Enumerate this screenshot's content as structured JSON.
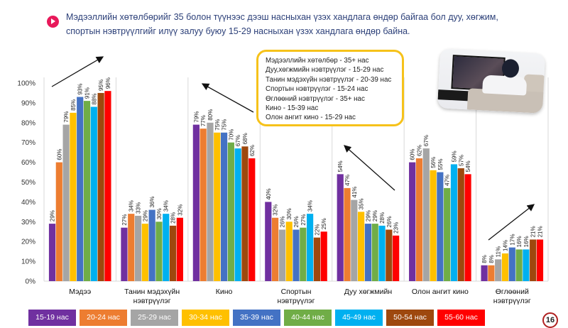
{
  "header": {
    "text_line1": "Мэдээллийн хөтөлбөрийг 35 болон түүнээс дээш насныхан үзэх хандлага өндөр байгаа бол  дуу, хөгжим,",
    "text_line2": "спортын нэвтрүүлгийг илүү залуу буюу 15-29 насныхан үзэх хандлага өндөр байна."
  },
  "annotation_box": [
    "Мэдээллийн хөтөлбөр  -  35+ нас",
    "Дуу,хөгжмийн нэвтрүүлэг   - 15-29 нас",
    "Танин мэдэхүйн нэвтрүүлэг   -  20-39 нас",
    "Спортын нэвтрүүлэг  -  15-24 нас",
    "Өглөөний нэвтрүүлэг  -  35+ нас",
    "Кино  - 15-39 нас",
    "Олон ангит кино  -  15-29 нас"
  ],
  "page_number": "16",
  "chart_data": {
    "type": "bar",
    "title": "",
    "xlabel": "",
    "ylabel": "",
    "ylim": [
      0,
      100
    ],
    "yticks": [
      "0%",
      "10%",
      "20%",
      "30%",
      "40%",
      "50%",
      "60%",
      "70%",
      "80%",
      "90%",
      "100%"
    ],
    "grid": false,
    "legend_position": "bottom",
    "categories": [
      [
        "Мэдээ"
      ],
      [
        "Танин мэдэхүйн",
        "нэвтрүүлэг"
      ],
      [
        "Кино"
      ],
      [
        "Спортын",
        "нэвтрүүлэг"
      ],
      [
        "Дуу хөгжмийн"
      ],
      [
        "Олон ангит кино"
      ],
      [
        "Өглөөний",
        "нэвтрүүлэг"
      ]
    ],
    "series": [
      {
        "name": "15-19 нас",
        "color": "#7030a0",
        "values": [
          29,
          27,
          79,
          40,
          54,
          60,
          8
        ]
      },
      {
        "name": "20-24 нас",
        "color": "#ed7d31",
        "values": [
          60,
          34,
          77,
          32,
          47,
          62,
          8
        ]
      },
      {
        "name": "25-29 нас",
        "color": "#a5a5a5",
        "values": [
          79,
          33,
          80,
          26,
          41,
          67,
          11
        ]
      },
      {
        "name": "30-34 нас",
        "color": "#ffc000",
        "values": [
          85,
          29,
          75,
          30,
          35,
          56,
          14
        ]
      },
      {
        "name": "35-39 нас",
        "color": "#4472c4",
        "values": [
          93,
          36,
          75,
          26,
          29,
          55,
          17
        ]
      },
      {
        "name": "40-44 нас",
        "color": "#70ad47",
        "values": [
          91,
          30,
          70,
          27,
          29,
          47,
          16
        ]
      },
      {
        "name": "45-49 нас",
        "color": "#00b0f0",
        "values": [
          88,
          34,
          67,
          34,
          28,
          59,
          16
        ]
      },
      {
        "name": "50-54 нас",
        "color": "#9e480e",
        "values": [
          95,
          28,
          68,
          22,
          26,
          57,
          21
        ]
      },
      {
        "name": "55-60 нас",
        "color": "#ff0000",
        "values": [
          96,
          32,
          62,
          25,
          23,
          54,
          21
        ]
      }
    ],
    "value_suffix": "%"
  }
}
